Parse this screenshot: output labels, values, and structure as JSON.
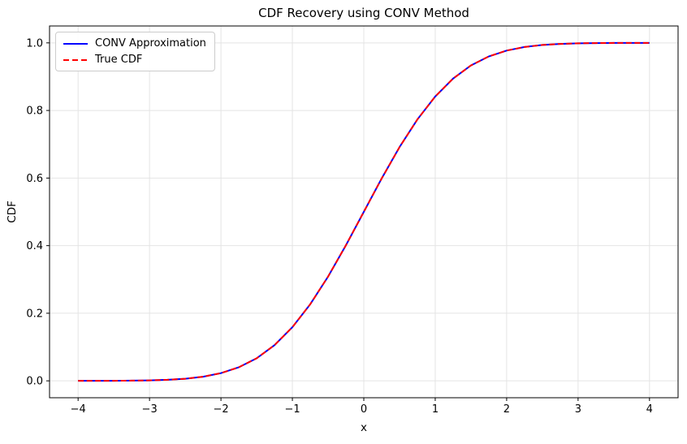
{
  "chart": {
    "title": "CDF Recovery using CONV Method",
    "xlabel": "x",
    "ylabel": "CDF"
  },
  "legend": {
    "items": [
      {
        "label": "CONV Approximation"
      },
      {
        "label": "True CDF"
      }
    ]
  },
  "chart_data": {
    "type": "line",
    "title": "CDF Recovery using CONV Method",
    "xlabel": "x",
    "ylabel": "CDF",
    "xlim": [
      -4.4,
      4.4
    ],
    "ylim": [
      -0.05,
      1.05
    ],
    "xticks": [
      -4,
      -3,
      -2,
      -1,
      0,
      1,
      2,
      3,
      4
    ],
    "yticks": [
      0.0,
      0.2,
      0.4,
      0.6,
      0.8,
      1.0
    ],
    "xtick_labels": [
      "−4",
      "−3",
      "−2",
      "−1",
      "0",
      "1",
      "2",
      "3",
      "4"
    ],
    "ytick_labels": [
      "0.0",
      "0.2",
      "0.4",
      "0.6",
      "0.8",
      "1.0"
    ],
    "grid": true,
    "grid_color": "#e4e4e4",
    "spine_color": "#000000",
    "legend_position": "upper left",
    "x": [
      -4,
      -3.75,
      -3.5,
      -3.25,
      -3,
      -2.75,
      -2.5,
      -2.25,
      -2,
      -1.75,
      -1.5,
      -1.25,
      -1,
      -0.75,
      -0.5,
      -0.25,
      0,
      0.25,
      0.5,
      0.75,
      1,
      1.25,
      1.5,
      1.75,
      2,
      2.25,
      2.5,
      2.75,
      3,
      3.25,
      3.5,
      3.75,
      4
    ],
    "series": [
      {
        "name": "CONV Approximation",
        "color": "#0000ff",
        "style": "solid",
        "values": [
          0.0,
          0.0001,
          0.0002,
          0.0006,
          0.0013,
          0.003,
          0.0062,
          0.0122,
          0.0228,
          0.0401,
          0.0668,
          0.1056,
          0.1587,
          0.2266,
          0.3085,
          0.4013,
          0.5,
          0.5987,
          0.6915,
          0.7734,
          0.8413,
          0.8944,
          0.9332,
          0.9599,
          0.9772,
          0.9878,
          0.9938,
          0.997,
          0.9987,
          0.9994,
          0.9998,
          0.9999,
          1.0
        ]
      },
      {
        "name": "True CDF",
        "color": "#ff0000",
        "style": "dashed",
        "values": [
          0.0,
          0.0001,
          0.0002,
          0.0006,
          0.0013,
          0.003,
          0.0062,
          0.0122,
          0.0228,
          0.0401,
          0.0668,
          0.1056,
          0.1587,
          0.2266,
          0.3085,
          0.4013,
          0.5,
          0.5987,
          0.6915,
          0.7734,
          0.8413,
          0.8944,
          0.9332,
          0.9599,
          0.9772,
          0.9878,
          0.9938,
          0.997,
          0.9987,
          0.9994,
          0.9998,
          0.9999,
          1.0
        ]
      }
    ]
  }
}
